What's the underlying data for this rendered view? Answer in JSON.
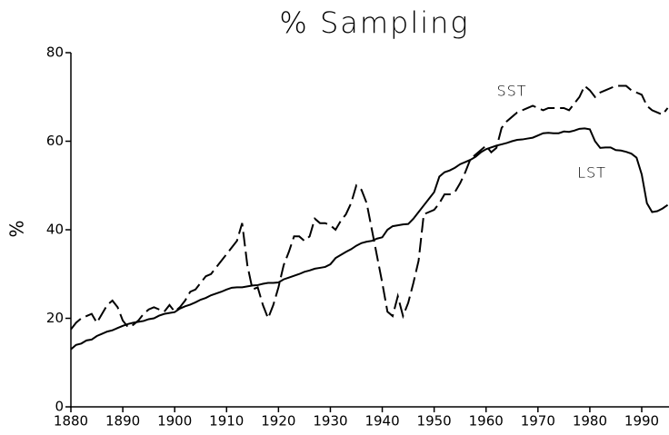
{
  "chart_data": {
    "type": "line",
    "title": "% Sampling",
    "y_label": "%",
    "x": [
      1880,
      1881,
      1882,
      1883,
      1884,
      1885,
      1886,
      1887,
      1888,
      1889,
      1890,
      1891,
      1892,
      1893,
      1894,
      1895,
      1896,
      1897,
      1898,
      1899,
      1900,
      1901,
      1902,
      1903,
      1904,
      1905,
      1906,
      1907,
      1908,
      1909,
      1910,
      1911,
      1912,
      1913,
      1914,
      1915,
      1916,
      1917,
      1918,
      1919,
      1920,
      1921,
      1922,
      1923,
      1924,
      1925,
      1926,
      1927,
      1928,
      1929,
      1930,
      1931,
      1932,
      1933,
      1934,
      1935,
      1936,
      1937,
      1938,
      1939,
      1940,
      1941,
      1942,
      1943,
      1944,
      1945,
      1946,
      1947,
      1948,
      1949,
      1950,
      1951,
      1952,
      1953,
      1954,
      1955,
      1956,
      1957,
      1958,
      1959,
      1960,
      1961,
      1962,
      1963,
      1964,
      1965,
      1966,
      1967,
      1968,
      1969,
      1970,
      1971,
      1972,
      1973,
      1974,
      1975,
      1976,
      1977,
      1978,
      1979,
      1980,
      1981,
      1982,
      1983,
      1984,
      1985,
      1986,
      1987,
      1988,
      1989,
      1990,
      1991,
      1992,
      1993,
      1994,
      1995
    ],
    "series": [
      {
        "name": "SST",
        "color": "#000000",
        "style": "dashed",
        "values": [
          17.5,
          19,
          20,
          20.5,
          21,
          19,
          21,
          23,
          24,
          22.5,
          19.5,
          18,
          18.5,
          19.5,
          21,
          22,
          22.5,
          22,
          21.5,
          23,
          21.5,
          22.5,
          24,
          26,
          26.5,
          28,
          29.5,
          30,
          31.5,
          33,
          34.5,
          36,
          37.5,
          41.5,
          32,
          26.5,
          27,
          23,
          20,
          23,
          27,
          32,
          35,
          38.5,
          38.5,
          37.5,
          38.5,
          42.5,
          41.5,
          41.5,
          41,
          40,
          42,
          43.5,
          46,
          50,
          49,
          46,
          40,
          34,
          28,
          21.5,
          20.5,
          25,
          20.5,
          23.5,
          28,
          33,
          43.5,
          44,
          44.5,
          46,
          48,
          48,
          48.5,
          50.5,
          53,
          56,
          57,
          58,
          59,
          57.5,
          58.5,
          63,
          64.5,
          65.5,
          66.5,
          67,
          67.5,
          68,
          67.5,
          67,
          67.5,
          67.5,
          67.5,
          67.5,
          67,
          68.5,
          70,
          72.5,
          71.5,
          70,
          71,
          71.5,
          72,
          72.5,
          72.5,
          72.5,
          71.5,
          71,
          70.5,
          68,
          67,
          66.5,
          66,
          67.5
        ]
      },
      {
        "name": "LST",
        "color": "#000000",
        "style": "solid",
        "values": [
          13,
          14,
          14.3,
          15,
          15.2,
          16,
          16.5,
          17,
          17.3,
          17.8,
          18.3,
          18.7,
          19,
          19.2,
          19.4,
          19.8,
          20,
          20.6,
          21,
          21.2,
          21.4,
          22.2,
          22.7,
          23.1,
          23.6,
          24.2,
          24.6,
          25.2,
          25.6,
          26,
          26.5,
          26.9,
          27,
          27,
          27.2,
          27.4,
          27.5,
          27.8,
          28,
          28,
          28.1,
          28.8,
          29.2,
          29.6,
          30,
          30.5,
          30.8,
          31.2,
          31.4,
          31.6,
          32.2,
          33.6,
          34.3,
          35,
          35.6,
          36.4,
          37,
          37.3,
          37.5,
          38,
          38.3,
          40,
          40.8,
          41,
          41.2,
          41.3,
          42.5,
          44,
          45.5,
          47,
          48.5,
          52,
          53,
          53.4,
          54,
          54.8,
          55.3,
          55.8,
          56.5,
          57.5,
          58.2,
          58.6,
          59,
          59.3,
          59.6,
          60,
          60.3,
          60.4,
          60.6,
          60.8,
          61.3,
          61.8,
          61.9,
          61.8,
          61.8,
          62.2,
          62.1,
          62.4,
          62.8,
          62.9,
          62.7,
          60,
          58.5,
          58.6,
          58.6,
          58,
          57.9,
          57.6,
          57.2,
          56.3,
          52.5,
          46,
          44,
          44.2,
          44.8,
          45.6
        ]
      }
    ],
    "xlim": [
      1880,
      1995.3
    ],
    "ylim": [
      0,
      80
    ],
    "xticks": [
      1880,
      1890,
      1900,
      1910,
      1920,
      1930,
      1940,
      1950,
      1960,
      1970,
      1980,
      1990
    ],
    "yticks": [
      0,
      20,
      40,
      60,
      80
    ]
  }
}
